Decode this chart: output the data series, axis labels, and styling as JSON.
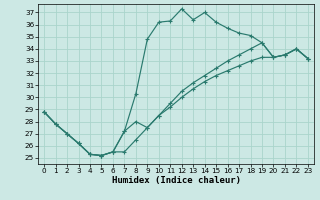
{
  "xlabel": "Humidex (Indice chaleur)",
  "background_color": "#cce8e4",
  "grid_color": "#aad4cc",
  "line_color": "#2a7a6e",
  "xlim": [
    -0.5,
    23.5
  ],
  "ylim": [
    24.5,
    37.7
  ],
  "xticks": [
    0,
    1,
    2,
    3,
    4,
    5,
    6,
    7,
    8,
    9,
    10,
    11,
    12,
    13,
    14,
    15,
    16,
    17,
    18,
    19,
    20,
    21,
    22,
    23
  ],
  "yticks": [
    25,
    26,
    27,
    28,
    29,
    30,
    31,
    32,
    33,
    34,
    35,
    36,
    37
  ],
  "curves": [
    [
      28.8,
      27.8,
      27.0,
      26.2,
      25.3,
      25.2,
      25.5,
      27.2,
      30.3,
      34.8,
      36.2,
      36.3,
      37.3,
      36.4,
      37.0,
      36.2,
      35.7,
      35.3,
      35.1,
      34.5,
      33.3,
      33.5,
      34.0,
      33.2
    ],
    [
      28.8,
      27.8,
      27.0,
      26.2,
      25.3,
      25.2,
      25.5,
      27.2,
      28.0,
      27.5,
      28.5,
      29.5,
      30.5,
      31.2,
      31.8,
      32.4,
      33.0,
      33.5,
      34.0,
      34.5,
      33.3,
      33.5,
      34.0,
      33.2
    ],
    [
      28.8,
      27.8,
      27.0,
      26.2,
      25.3,
      25.2,
      25.5,
      25.5,
      26.5,
      27.5,
      28.5,
      29.2,
      30.0,
      30.7,
      31.3,
      31.8,
      32.2,
      32.6,
      33.0,
      33.3,
      33.3,
      33.5,
      34.0,
      33.2
    ]
  ]
}
